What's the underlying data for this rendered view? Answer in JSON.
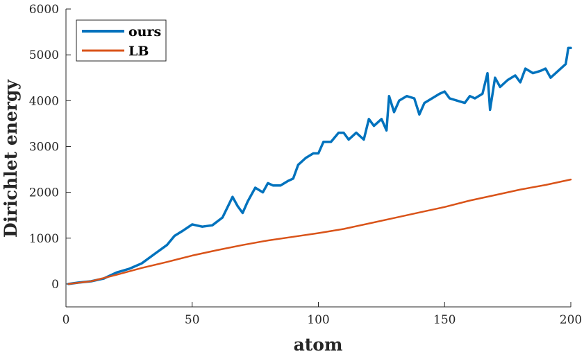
{
  "chart_data": {
    "type": "line",
    "title": "",
    "xlabel": "atom",
    "ylabel": "Dirichlet energy",
    "xlim": [
      0,
      200
    ],
    "ylim": [
      -500,
      6000
    ],
    "x_ticks": [
      0,
      50,
      100,
      150,
      200
    ],
    "y_ticks": [
      0,
      1000,
      2000,
      3000,
      4000,
      5000,
      6000
    ],
    "grid": false,
    "legend_position": "top-left",
    "series": [
      {
        "name": "ours",
        "color": "#0072BD",
        "x": [
          1,
          5,
          10,
          15,
          20,
          25,
          30,
          35,
          40,
          43,
          46,
          50,
          54,
          58,
          62,
          66,
          68,
          70,
          72,
          75,
          78,
          80,
          82,
          85,
          88,
          90,
          92,
          95,
          98,
          100,
          102,
          105,
          108,
          110,
          112,
          115,
          118,
          120,
          122,
          125,
          127,
          128,
          130,
          132,
          135,
          138,
          140,
          142,
          145,
          148,
          150,
          152,
          155,
          158,
          160,
          162,
          165,
          167,
          168,
          170,
          172,
          175,
          178,
          180,
          182,
          185,
          188,
          190,
          192,
          195,
          198,
          199,
          200
        ],
        "values": [
          0,
          30,
          60,
          120,
          250,
          330,
          450,
          650,
          850,
          1050,
          1150,
          1300,
          1250,
          1280,
          1450,
          1900,
          1700,
          1550,
          1800,
          2100,
          2000,
          2200,
          2150,
          2150,
          2250,
          2300,
          2600,
          2750,
          2850,
          2850,
          3100,
          3100,
          3300,
          3300,
          3150,
          3300,
          3150,
          3600,
          3450,
          3600,
          3350,
          4100,
          3750,
          4000,
          4100,
          4050,
          3700,
          3950,
          4050,
          4150,
          4200,
          4050,
          4000,
          3950,
          4100,
          4050,
          4150,
          4600,
          3800,
          4500,
          4300,
          4450,
          4550,
          4400,
          4700,
          4600,
          4650,
          4700,
          4500,
          4650,
          4800,
          5150,
          5150
        ]
      },
      {
        "name": "LB",
        "color": "#D95319",
        "x": [
          1,
          10,
          20,
          30,
          40,
          50,
          60,
          70,
          80,
          90,
          100,
          110,
          120,
          130,
          140,
          150,
          160,
          170,
          180,
          190,
          200
        ],
        "values": [
          0,
          60,
          200,
          350,
          480,
          620,
          740,
          850,
          950,
          1030,
          1110,
          1200,
          1320,
          1440,
          1560,
          1680,
          1820,
          1940,
          2060,
          2160,
          2280
        ]
      }
    ]
  }
}
